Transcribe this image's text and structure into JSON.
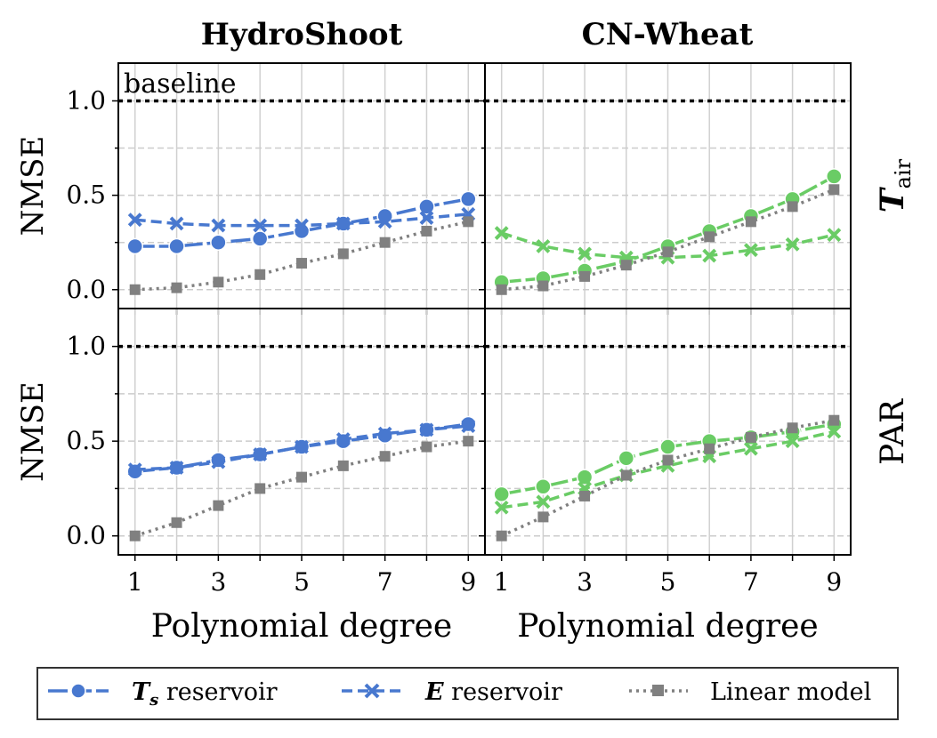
{
  "columns": [
    "HydroShoot",
    "CN-Wheat"
  ],
  "rows": [
    {
      "sym": "T",
      "sub": "air"
    },
    {
      "sym": "PAR",
      "sub": ""
    }
  ],
  "baseline_label": "baseline",
  "legend": [
    {
      "key": "ts",
      "sym": "T",
      "sub": "s",
      "rest": " reservoir"
    },
    {
      "key": "e",
      "sym": "E",
      "sub": "",
      "rest": " reservoir"
    },
    {
      "key": "lin",
      "sym": "",
      "sub": "",
      "rest": "Linear model"
    }
  ],
  "colors": {
    "hydroshoot": "#4878cf",
    "cnwheat": "#6acc65",
    "linear": "#808080",
    "baseline": "#000000"
  },
  "chart_data": [
    {
      "type": "line",
      "id": "hs-tair",
      "x": [
        1,
        2,
        3,
        4,
        5,
        6,
        7,
        8,
        9
      ],
      "xticks": [
        1,
        3,
        5,
        7,
        9
      ],
      "xlabel": "",
      "ylabel": "NMSE",
      "yticks": [
        0.0,
        0.5,
        1.0
      ],
      "ylim": [
        -0.1,
        1.2
      ],
      "baseline": 1.0,
      "series": [
        {
          "key": "ts",
          "values": [
            0.23,
            0.23,
            0.25,
            0.27,
            0.31,
            0.35,
            0.39,
            0.44,
            0.48
          ]
        },
        {
          "key": "e",
          "values": [
            0.37,
            0.35,
            0.34,
            0.34,
            0.34,
            0.35,
            0.36,
            0.38,
            0.4
          ]
        },
        {
          "key": "lin",
          "values": [
            0.0,
            0.01,
            0.04,
            0.08,
            0.14,
            0.19,
            0.25,
            0.31,
            0.36
          ]
        }
      ]
    },
    {
      "type": "line",
      "id": "cn-tair",
      "x": [
        1,
        2,
        3,
        4,
        5,
        6,
        7,
        8,
        9
      ],
      "xticks": [
        1,
        3,
        5,
        7,
        9
      ],
      "xlabel": "",
      "ylabel": "",
      "yticks": [
        0.0,
        0.5,
        1.0
      ],
      "ylim": [
        -0.1,
        1.2
      ],
      "baseline": 1.0,
      "series": [
        {
          "key": "ts",
          "values": [
            0.04,
            0.06,
            0.1,
            0.15,
            0.23,
            0.31,
            0.39,
            0.48,
            0.6
          ]
        },
        {
          "key": "e",
          "values": [
            0.3,
            0.23,
            0.19,
            0.17,
            0.17,
            0.18,
            0.21,
            0.24,
            0.29
          ]
        },
        {
          "key": "lin",
          "values": [
            0.0,
            0.02,
            0.07,
            0.13,
            0.2,
            0.28,
            0.36,
            0.44,
            0.53
          ]
        }
      ]
    },
    {
      "type": "line",
      "id": "hs-par",
      "x": [
        1,
        2,
        3,
        4,
        5,
        6,
        7,
        8,
        9
      ],
      "xticks": [
        1,
        3,
        5,
        7,
        9
      ],
      "xlabel": "Polynomial degree",
      "ylabel": "NMSE",
      "yticks": [
        0.0,
        0.5,
        1.0
      ],
      "ylim": [
        -0.1,
        1.2
      ],
      "baseline": 1.0,
      "series": [
        {
          "key": "ts",
          "values": [
            0.34,
            0.36,
            0.4,
            0.43,
            0.47,
            0.5,
            0.53,
            0.56,
            0.59
          ]
        },
        {
          "key": "e",
          "values": [
            0.35,
            0.36,
            0.39,
            0.43,
            0.47,
            0.51,
            0.54,
            0.56,
            0.58
          ]
        },
        {
          "key": "lin",
          "values": [
            0.0,
            0.07,
            0.16,
            0.25,
            0.31,
            0.37,
            0.42,
            0.47,
            0.5
          ]
        }
      ]
    },
    {
      "type": "line",
      "id": "cn-par",
      "x": [
        1,
        2,
        3,
        4,
        5,
        6,
        7,
        8,
        9
      ],
      "xticks": [
        1,
        3,
        5,
        7,
        9
      ],
      "xlabel": "Polynomial degree",
      "ylabel": "",
      "yticks": [
        0.0,
        0.5,
        1.0
      ],
      "ylim": [
        -0.1,
        1.2
      ],
      "baseline": 1.0,
      "series": [
        {
          "key": "ts",
          "values": [
            0.22,
            0.26,
            0.31,
            0.41,
            0.47,
            0.5,
            0.52,
            0.55,
            0.59
          ]
        },
        {
          "key": "e",
          "values": [
            0.15,
            0.18,
            0.25,
            0.32,
            0.37,
            0.42,
            0.46,
            0.5,
            0.55
          ]
        },
        {
          "key": "lin",
          "values": [
            0.0,
            0.1,
            0.21,
            0.32,
            0.4,
            0.46,
            0.52,
            0.57,
            0.61
          ]
        }
      ]
    }
  ]
}
